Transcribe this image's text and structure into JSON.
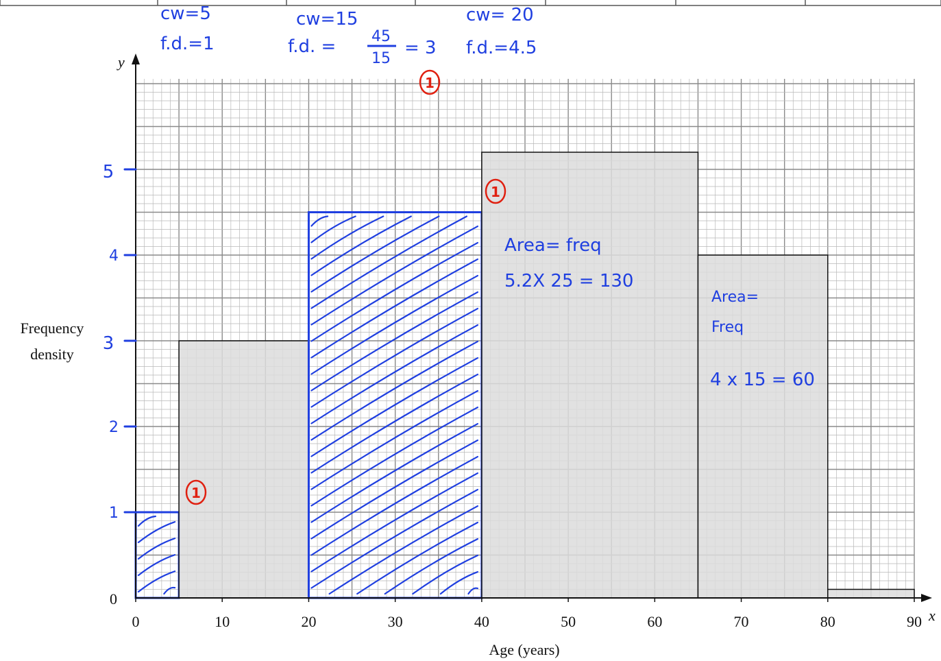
{
  "chart_data": {
    "type": "bar",
    "title": "",
    "xlabel": "Age (years)",
    "ylabel_lines": [
      "Frequency",
      "density"
    ],
    "x_var": "x",
    "y_var": "y",
    "xlim": [
      0,
      90
    ],
    "ylim": [
      0,
      6
    ],
    "grid": true,
    "x_ticks": [
      "0",
      "10",
      "20",
      "30",
      "40",
      "50",
      "60",
      "70",
      "80",
      "90"
    ],
    "y_origin_label": "0",
    "bins": [
      {
        "x0": 0,
        "x1": 5,
        "frequency_density": 1,
        "style": "hatched-drawn"
      },
      {
        "x0": 5,
        "x1": 20,
        "frequency_density": 3,
        "style": "grey"
      },
      {
        "x0": 20,
        "x1": 40,
        "frequency_density": 4.5,
        "style": "hatched-drawn"
      },
      {
        "x0": 40,
        "x1": 65,
        "frequency_density": 5.2,
        "style": "grey"
      },
      {
        "x0": 65,
        "x1": 80,
        "frequency_density": 4,
        "style": "grey"
      },
      {
        "x0": 80,
        "x1": 90,
        "frequency_density": 0.1,
        "style": "grey"
      }
    ],
    "handwritten_y_ticks": [
      {
        "value": 1,
        "label": "1"
      },
      {
        "value": 2,
        "label": "2"
      },
      {
        "value": 3,
        "label": "3"
      },
      {
        "value": 4,
        "label": "4"
      },
      {
        "value": 5,
        "label": "5"
      }
    ]
  },
  "annotations": {
    "cw5": "cw=5",
    "fd1": "f.d.=1",
    "cw15": "cw=15",
    "fd3_prefix": "f.d. =",
    "fd3_num": "45",
    "fd3_den": "15",
    "fd3_result": "= 3",
    "cw20": "cw= 20",
    "fd45": "f.d.=4.5",
    "mark": "1",
    "area1_line1": "Area= freq",
    "area1_line2": "5.2X 25 = 130",
    "area2_line1": "Area=",
    "area2_line2": "Freq",
    "area2_line3": "4 x 15 = 60"
  },
  "colors": {
    "grid_minor": "#b8b8b8",
    "grid_major": "#8a8a8a",
    "bar_fill": "#dcdcdc",
    "hand_blue": "#1f3fe0",
    "hand_red": "#e02010"
  }
}
